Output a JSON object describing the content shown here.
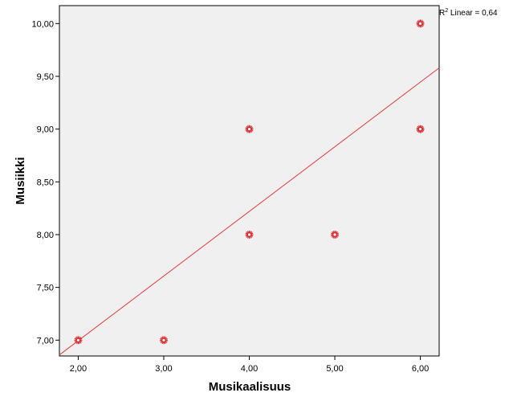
{
  "chart_data": {
    "type": "scatter",
    "xlabel": "Musikaalisuus",
    "ylabel": "Musiikki",
    "xlim": [
      1.78,
      6.22
    ],
    "ylim": [
      6.85,
      10.17
    ],
    "xticks": [
      "2,00",
      "3,00",
      "4,00",
      "5,00",
      "6,00"
    ],
    "yticks": [
      "7,00",
      "7,50",
      "8,00",
      "8,50",
      "9,00",
      "9,50",
      "10,00"
    ],
    "xtick_values": [
      2,
      3,
      4,
      5,
      6
    ],
    "ytick_values": [
      7,
      7.5,
      8,
      8.5,
      9,
      9.5,
      10
    ],
    "points": [
      {
        "x": 2,
        "y": 7
      },
      {
        "x": 3,
        "y": 7
      },
      {
        "x": 4,
        "y": 8
      },
      {
        "x": 4,
        "y": 9
      },
      {
        "x": 5,
        "y": 8
      },
      {
        "x": 6,
        "y": 9
      },
      {
        "x": 6,
        "y": 10
      }
    ],
    "fit_line": {
      "type": "linear",
      "x1": 1.78,
      "y1": 6.86,
      "x2": 6.22,
      "y2": 9.58
    },
    "r2_label": {
      "prefix": "R",
      "sup": "2",
      "text": " Linear = 0,64"
    },
    "grid": false,
    "colors": {
      "plot_bg": "#f0f0f0",
      "marker": "#d9282e",
      "fit_line": "#e23a3a",
      "axis": "#000000"
    }
  }
}
